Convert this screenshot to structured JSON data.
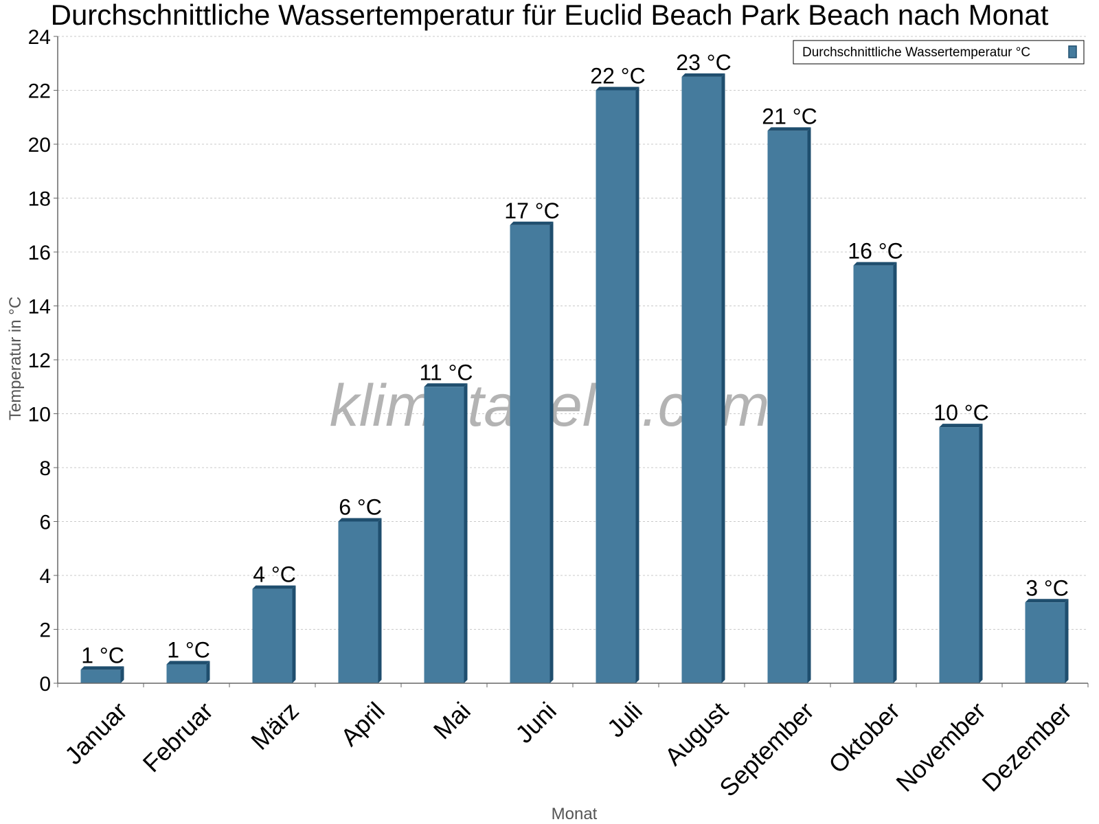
{
  "watermark": "klimatabelle.com",
  "colors": {
    "bar": "#457b9d",
    "bar_side": "#1f4e6e",
    "grid": "#c8c8c8",
    "axis": "#666666"
  },
  "chart_data": {
    "type": "bar",
    "title": "Durchschnittliche Wassertemperatur für Euclid Beach Park Beach nach Monat",
    "xlabel": "Monat",
    "ylabel": "Temperatur in °C",
    "ylim": [
      0,
      24
    ],
    "yticks": [
      0,
      2,
      4,
      6,
      8,
      10,
      12,
      14,
      16,
      18,
      20,
      22,
      24
    ],
    "grid": true,
    "legend_position": "top-right",
    "categories": [
      "Januar",
      "Februar",
      "März",
      "April",
      "Mai",
      "Juni",
      "Juli",
      "August",
      "September",
      "Oktober",
      "November",
      "Dezember"
    ],
    "series": [
      {
        "name": "Durchschnittliche Wassertemperatur °C",
        "values": [
          0.5,
          0.7,
          3.5,
          6.0,
          11.0,
          17.0,
          22.0,
          22.5,
          20.5,
          15.5,
          9.5,
          3.0
        ],
        "labels": [
          "1 °C",
          "1 °C",
          "4 °C",
          "6 °C",
          "11 °C",
          "17 °C",
          "22 °C",
          "23 °C",
          "21 °C",
          "16 °C",
          "10 °C",
          "3 °C"
        ]
      }
    ]
  }
}
